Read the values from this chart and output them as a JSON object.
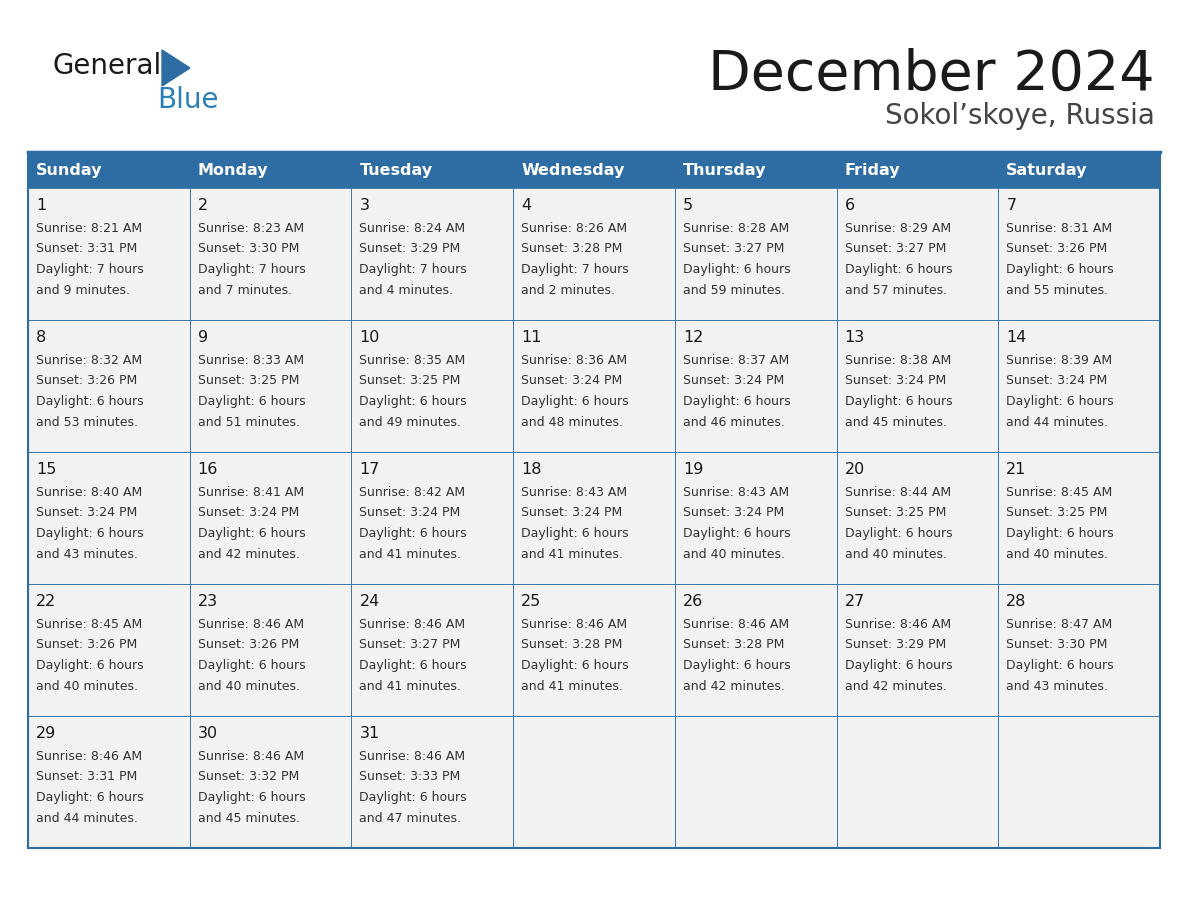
{
  "title": "December 2024",
  "subtitle": "Sokol’skoye, Russia",
  "header_color": "#2E6DA4",
  "header_text_color": "#FFFFFF",
  "cell_bg_color": "#F2F2F2",
  "border_color": "#2E6DA4",
  "title_color": "#1a1a1a",
  "subtitle_color": "#444444",
  "day_num_color": "#1a1a1a",
  "cell_text_color": "#333333",
  "day_names": [
    "Sunday",
    "Monday",
    "Tuesday",
    "Wednesday",
    "Thursday",
    "Friday",
    "Saturday"
  ],
  "weeks": [
    [
      {
        "day": 1,
        "sunrise": "8:21 AM",
        "sunset": "3:31 PM",
        "daylight_h": "7 hours",
        "daylight_m": "and 9 minutes."
      },
      {
        "day": 2,
        "sunrise": "8:23 AM",
        "sunset": "3:30 PM",
        "daylight_h": "7 hours",
        "daylight_m": "and 7 minutes."
      },
      {
        "day": 3,
        "sunrise": "8:24 AM",
        "sunset": "3:29 PM",
        "daylight_h": "7 hours",
        "daylight_m": "and 4 minutes."
      },
      {
        "day": 4,
        "sunrise": "8:26 AM",
        "sunset": "3:28 PM",
        "daylight_h": "7 hours",
        "daylight_m": "and 2 minutes."
      },
      {
        "day": 5,
        "sunrise": "8:28 AM",
        "sunset": "3:27 PM",
        "daylight_h": "6 hours",
        "daylight_m": "and 59 minutes."
      },
      {
        "day": 6,
        "sunrise": "8:29 AM",
        "sunset": "3:27 PM",
        "daylight_h": "6 hours",
        "daylight_m": "and 57 minutes."
      },
      {
        "day": 7,
        "sunrise": "8:31 AM",
        "sunset": "3:26 PM",
        "daylight_h": "6 hours",
        "daylight_m": "and 55 minutes."
      }
    ],
    [
      {
        "day": 8,
        "sunrise": "8:32 AM",
        "sunset": "3:26 PM",
        "daylight_h": "6 hours",
        "daylight_m": "and 53 minutes."
      },
      {
        "day": 9,
        "sunrise": "8:33 AM",
        "sunset": "3:25 PM",
        "daylight_h": "6 hours",
        "daylight_m": "and 51 minutes."
      },
      {
        "day": 10,
        "sunrise": "8:35 AM",
        "sunset": "3:25 PM",
        "daylight_h": "6 hours",
        "daylight_m": "and 49 minutes."
      },
      {
        "day": 11,
        "sunrise": "8:36 AM",
        "sunset": "3:24 PM",
        "daylight_h": "6 hours",
        "daylight_m": "and 48 minutes."
      },
      {
        "day": 12,
        "sunrise": "8:37 AM",
        "sunset": "3:24 PM",
        "daylight_h": "6 hours",
        "daylight_m": "and 46 minutes."
      },
      {
        "day": 13,
        "sunrise": "8:38 AM",
        "sunset": "3:24 PM",
        "daylight_h": "6 hours",
        "daylight_m": "and 45 minutes."
      },
      {
        "day": 14,
        "sunrise": "8:39 AM",
        "sunset": "3:24 PM",
        "daylight_h": "6 hours",
        "daylight_m": "and 44 minutes."
      }
    ],
    [
      {
        "day": 15,
        "sunrise": "8:40 AM",
        "sunset": "3:24 PM",
        "daylight_h": "6 hours",
        "daylight_m": "and 43 minutes."
      },
      {
        "day": 16,
        "sunrise": "8:41 AM",
        "sunset": "3:24 PM",
        "daylight_h": "6 hours",
        "daylight_m": "and 42 minutes."
      },
      {
        "day": 17,
        "sunrise": "8:42 AM",
        "sunset": "3:24 PM",
        "daylight_h": "6 hours",
        "daylight_m": "and 41 minutes."
      },
      {
        "day": 18,
        "sunrise": "8:43 AM",
        "sunset": "3:24 PM",
        "daylight_h": "6 hours",
        "daylight_m": "and 41 minutes."
      },
      {
        "day": 19,
        "sunrise": "8:43 AM",
        "sunset": "3:24 PM",
        "daylight_h": "6 hours",
        "daylight_m": "and 40 minutes."
      },
      {
        "day": 20,
        "sunrise": "8:44 AM",
        "sunset": "3:25 PM",
        "daylight_h": "6 hours",
        "daylight_m": "and 40 minutes."
      },
      {
        "day": 21,
        "sunrise": "8:45 AM",
        "sunset": "3:25 PM",
        "daylight_h": "6 hours",
        "daylight_m": "and 40 minutes."
      }
    ],
    [
      {
        "day": 22,
        "sunrise": "8:45 AM",
        "sunset": "3:26 PM",
        "daylight_h": "6 hours",
        "daylight_m": "and 40 minutes."
      },
      {
        "day": 23,
        "sunrise": "8:46 AM",
        "sunset": "3:26 PM",
        "daylight_h": "6 hours",
        "daylight_m": "and 40 minutes."
      },
      {
        "day": 24,
        "sunrise": "8:46 AM",
        "sunset": "3:27 PM",
        "daylight_h": "6 hours",
        "daylight_m": "and 41 minutes."
      },
      {
        "day": 25,
        "sunrise": "8:46 AM",
        "sunset": "3:28 PM",
        "daylight_h": "6 hours",
        "daylight_m": "and 41 minutes."
      },
      {
        "day": 26,
        "sunrise": "8:46 AM",
        "sunset": "3:28 PM",
        "daylight_h": "6 hours",
        "daylight_m": "and 42 minutes."
      },
      {
        "day": 27,
        "sunrise": "8:46 AM",
        "sunset": "3:29 PM",
        "daylight_h": "6 hours",
        "daylight_m": "and 42 minutes."
      },
      {
        "day": 28,
        "sunrise": "8:47 AM",
        "sunset": "3:30 PM",
        "daylight_h": "6 hours",
        "daylight_m": "and 43 minutes."
      }
    ],
    [
      {
        "day": 29,
        "sunrise": "8:46 AM",
        "sunset": "3:31 PM",
        "daylight_h": "6 hours",
        "daylight_m": "and 44 minutes."
      },
      {
        "day": 30,
        "sunrise": "8:46 AM",
        "sunset": "3:32 PM",
        "daylight_h": "6 hours",
        "daylight_m": "and 45 minutes."
      },
      {
        "day": 31,
        "sunrise": "8:46 AM",
        "sunset": "3:33 PM",
        "daylight_h": "6 hours",
        "daylight_m": "and 47 minutes."
      },
      null,
      null,
      null,
      null
    ]
  ],
  "logo_general_color": "#1a1a1a",
  "logo_blue_color": "#2980B9",
  "logo_triangle_color": "#2E6DA4"
}
